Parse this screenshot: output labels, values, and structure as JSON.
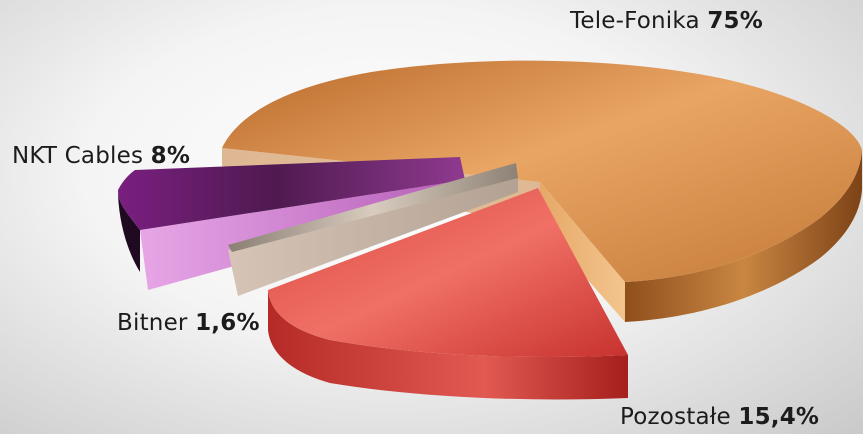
{
  "chart_data": {
    "type": "pie",
    "style": "3d-exploded",
    "slices": [
      {
        "label": "Tele-Fonika",
        "value": 75,
        "value_text": "75%",
        "color": "#d68b3c"
      },
      {
        "label": "Pozostałe",
        "value": 15.4,
        "value_text": "15,4%",
        "color": "#d23a3a"
      },
      {
        "label": "Bitner",
        "value": 1.6,
        "value_text": "1,6%",
        "color": "#a89a8a"
      },
      {
        "label": "NKT Cables",
        "value": 8,
        "value_text": "8%",
        "color": "#8a2d8e"
      }
    ]
  }
}
